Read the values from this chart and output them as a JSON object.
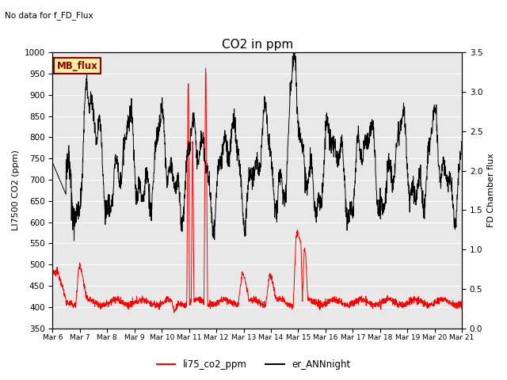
{
  "title": "CO2 in ppm",
  "top_left_text": "No data for f_FD_Flux",
  "ylabel_left": "LI7500 CO2 (ppm)",
  "ylabel_right": "FD Chamber flux",
  "ylim_left": [
    350,
    1000
  ],
  "ylim_right": [
    0.0,
    3.5
  ],
  "xlim": [
    0,
    15
  ],
  "xtick_labels": [
    "Mar 6",
    "Mar 7",
    "Mar 8",
    "Mar 9",
    "Mar 10",
    "Mar 11",
    "Mar 12",
    "Mar 13",
    "Mar 14",
    "Mar 15",
    "Mar 16",
    "Mar 17",
    "Mar 18",
    "Mar 19",
    "Mar 20",
    "Mar 21"
  ],
  "legend_box_label": "MB_flux",
  "legend_box_color": "#f5f0a0",
  "legend_box_edge_color": "#8b0000",
  "legend1_label": "li75_co2_ppm",
  "legend1_color": "red",
  "legend2_label": "er_ANNnight",
  "legend2_color": "black",
  "axes_face_color": "#e8e8e8",
  "fig_face_color": "#ffffff",
  "grid_color": "#ffffff"
}
